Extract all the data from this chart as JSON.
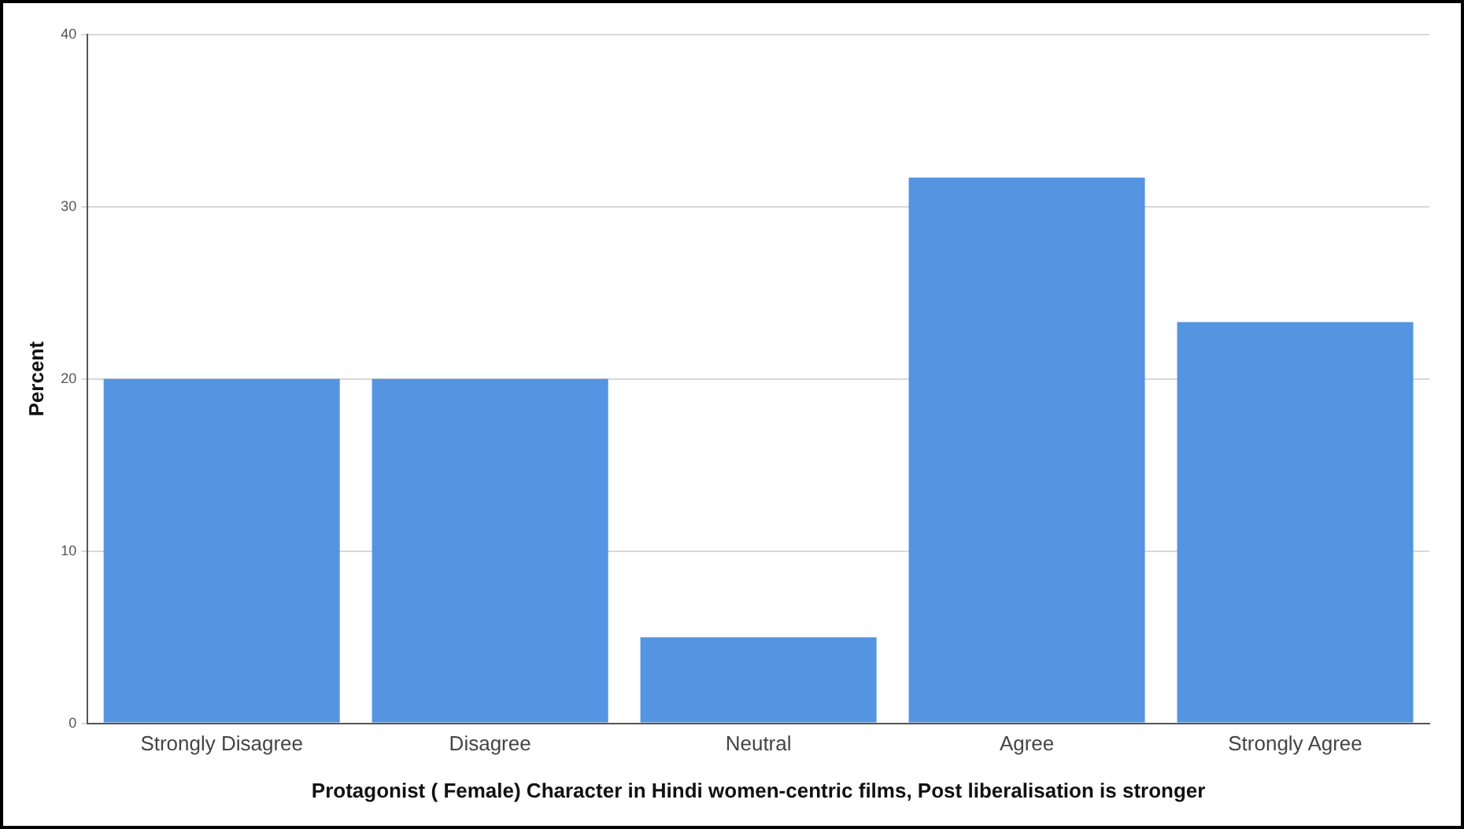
{
  "chart_data": {
    "type": "bar",
    "xlabel": "Protagonist ( Female) Character in Hindi women-centric films, Post liberalisation is stronger",
    "ylabel": "Percent",
    "categories": [
      "Strongly Disagree",
      "Disagree",
      "Neutral",
      "Agree",
      "Strongly Agree"
    ],
    "values": [
      20,
      20,
      5,
      31.7,
      23.3
    ],
    "color": "#5594e0",
    "ylim": [
      0,
      40
    ],
    "yticks": [
      0,
      10,
      20,
      30,
      40
    ],
    "grid": "y",
    "legend": false
  }
}
